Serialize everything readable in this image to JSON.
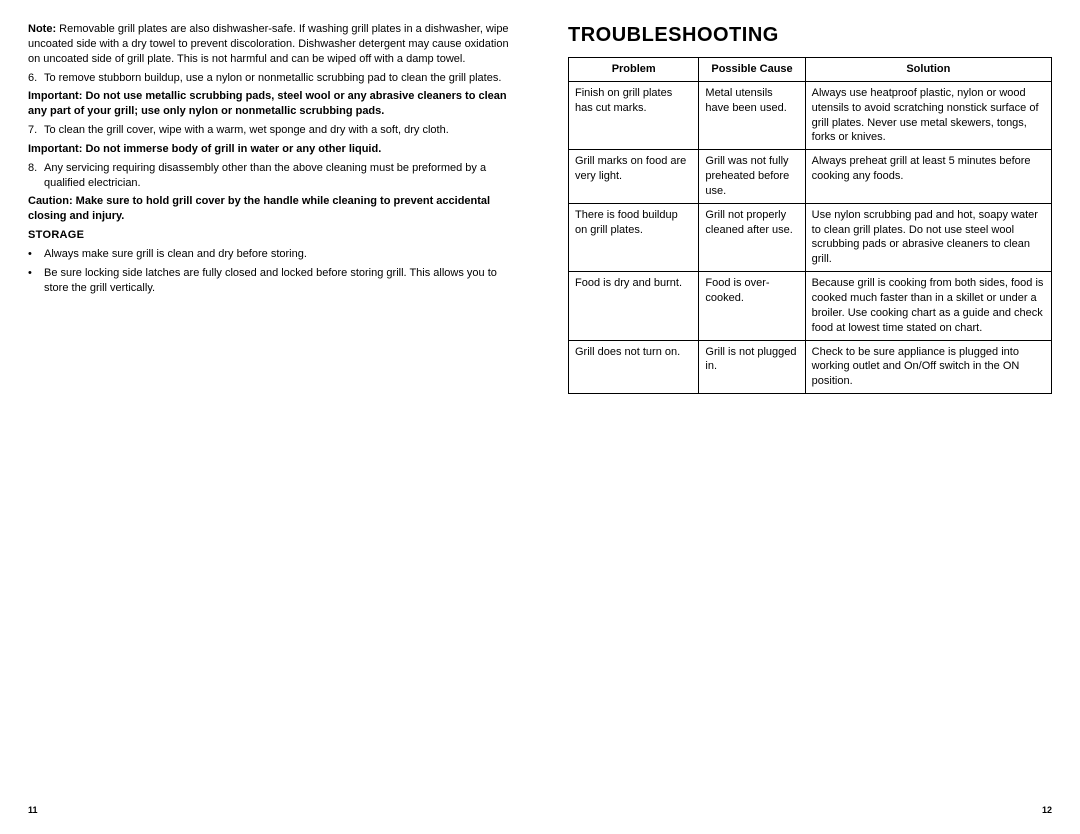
{
  "left": {
    "note_prefix": "Note:",
    "note_text": " Removable grill plates are also dishwasher-safe. If washing grill plates in a dishwasher, wipe uncoated side with a dry towel to prevent discoloration. Dishwasher detergent may cause oxidation on uncoated side of grill plate. This is not harmful and can be wiped off with a damp towel.",
    "item6_num": "6.",
    "item6": "To remove stubborn buildup, use a nylon or nonmetallic scrubbing pad to clean the grill plates.",
    "important1": "Important: Do not use metallic scrubbing pads, steel wool or any abrasive cleaners to clean any part of your grill; use only nylon or nonmetallic scrubbing pads.",
    "item7_num": "7.",
    "item7": "To clean the grill cover, wipe with a warm, wet sponge and dry with a soft, dry cloth.",
    "important2": "Important: Do not immerse body of grill in water or any other liquid.",
    "item8_num": "8.",
    "item8": "Any servicing requiring disassembly other than the above cleaning must be preformed by a qualified electrician.",
    "caution": "Caution: Make sure to hold grill cover by the handle while cleaning to prevent accidental closing and injury.",
    "storage_heading": "STORAGE",
    "storage_b1": "Always make sure grill is clean and dry before storing.",
    "storage_b2": "Be sure locking side latches are fully closed and locked before storing grill. This allows you to store the grill vertically.",
    "page_num": "11"
  },
  "right": {
    "title": "TROUBLESHOOTING",
    "headers": {
      "problem": "Problem",
      "cause": "Possible Cause",
      "solution": "Solution"
    },
    "rows": [
      {
        "problem": "Finish on grill plates has cut marks.",
        "cause": "Metal utensils have been used.",
        "solution": "Always use heatproof plastic, nylon or wood utensils to avoid scratching nonstick surface of grill plates.  Never use metal skewers, tongs, forks or knives."
      },
      {
        "problem": "Grill marks on food are very light.",
        "cause": "Grill was not fully preheated before use.",
        "solution": "Always preheat grill at least 5 minutes before cooking any foods."
      },
      {
        "problem": "There is food buildup on grill plates.",
        "cause": "Grill not properly cleaned after use.",
        "solution": "Use nylon scrubbing pad and hot, soapy water to clean grill plates.  Do not use steel wool scrubbing pads or abrasive cleaners to clean grill."
      },
      {
        "problem": "Food is dry and burnt.",
        "cause": "Food is over-cooked.",
        "solution": "Because grill is cooking from both sides, food is cooked much faster than in a skillet or under a broiler. Use cooking chart as a guide and check food at lowest time stated on chart."
      },
      {
        "problem": "Grill does not turn on.",
        "cause": "Grill is not plugged in.",
        "solution": "Check to be sure appliance is plugged into working outlet and On/Off switch in the ON position."
      }
    ],
    "page_num": "12"
  }
}
